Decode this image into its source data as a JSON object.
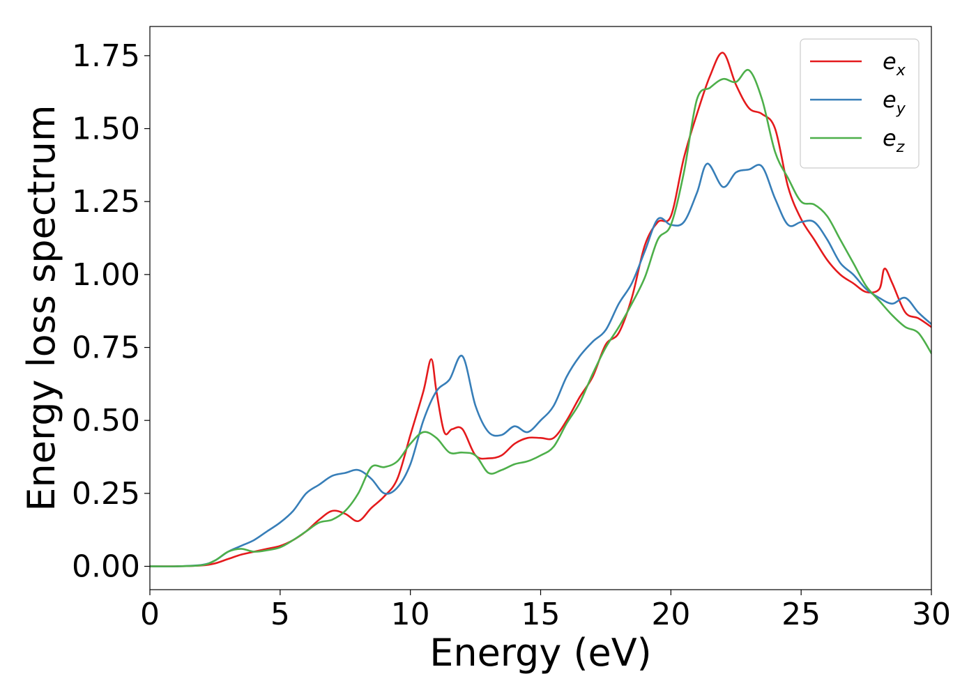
{
  "chart_data": {
    "type": "line",
    "title": "",
    "xlabel": "Energy (eV)",
    "ylabel": "Energy loss spectrum",
    "xlim": [
      0,
      30
    ],
    "ylim": [
      -0.08,
      1.85
    ],
    "xticks": [
      0,
      5,
      10,
      15,
      20,
      25,
      30
    ],
    "xtick_labels": [
      "0",
      "5",
      "10",
      "15",
      "20",
      "25",
      "30"
    ],
    "yticks": [
      0,
      0.25,
      0.5,
      0.75,
      1.0,
      1.25,
      1.5,
      1.75
    ],
    "ytick_labels": [
      "0.00",
      "0.25",
      "0.50",
      "0.75",
      "1.00",
      "1.25",
      "1.50",
      "1.75"
    ],
    "grid": false,
    "legend_position": "top-right",
    "series": [
      {
        "name": "e_x",
        "label_base": "e",
        "label_sub": "x",
        "color": "#e41a1c",
        "x": [
          0,
          1,
          2,
          2.5,
          3,
          3.5,
          4,
          4.5,
          5,
          5.5,
          6,
          6.5,
          7,
          7.5,
          8,
          8.5,
          9,
          9.5,
          10,
          10.5,
          10.8,
          11,
          11.3,
          11.6,
          12,
          12.5,
          13,
          13.5,
          14,
          14.5,
          15,
          15.5,
          16,
          16.5,
          17,
          17.5,
          18,
          18.5,
          19,
          19.5,
          20,
          20.5,
          21,
          21.5,
          22,
          22.5,
          23,
          23.5,
          24,
          24.5,
          25,
          25.5,
          26,
          26.5,
          27,
          27.5,
          28,
          28.2,
          28.5,
          29,
          29.5,
          30
        ],
        "y": [
          0,
          0,
          0.003,
          0.01,
          0.025,
          0.04,
          0.05,
          0.06,
          0.07,
          0.09,
          0.12,
          0.16,
          0.19,
          0.18,
          0.155,
          0.2,
          0.24,
          0.3,
          0.45,
          0.6,
          0.71,
          0.6,
          0.46,
          0.47,
          0.47,
          0.38,
          0.37,
          0.38,
          0.42,
          0.44,
          0.44,
          0.44,
          0.5,
          0.58,
          0.65,
          0.76,
          0.8,
          0.92,
          1.1,
          1.18,
          1.2,
          1.4,
          1.55,
          1.68,
          1.76,
          1.65,
          1.57,
          1.55,
          1.5,
          1.3,
          1.19,
          1.12,
          1.05,
          1.0,
          0.97,
          0.94,
          0.95,
          1.02,
          0.97,
          0.87,
          0.85,
          0.82
        ]
      },
      {
        "name": "e_y",
        "label_base": "e",
        "label_sub": "y",
        "color": "#377eb8",
        "x": [
          0,
          1,
          2,
          2.5,
          3,
          3.5,
          4,
          4.5,
          5,
          5.5,
          6,
          6.5,
          7,
          7.5,
          8,
          8.5,
          9,
          9.5,
          10,
          10.5,
          11,
          11.5,
          12,
          12.5,
          13,
          13.5,
          14,
          14.5,
          15,
          15.5,
          16,
          16.5,
          17,
          17.5,
          18,
          18.5,
          19,
          19.5,
          20,
          20.5,
          21,
          21.4,
          22,
          22.5,
          23,
          23.5,
          24,
          24.5,
          25,
          25.5,
          26,
          26.5,
          27,
          27.5,
          28,
          28.5,
          29,
          29.5,
          30
        ],
        "y": [
          0,
          0,
          0.005,
          0.02,
          0.05,
          0.07,
          0.09,
          0.12,
          0.15,
          0.19,
          0.25,
          0.28,
          0.31,
          0.32,
          0.33,
          0.3,
          0.25,
          0.27,
          0.35,
          0.5,
          0.6,
          0.64,
          0.72,
          0.55,
          0.46,
          0.45,
          0.48,
          0.46,
          0.5,
          0.55,
          0.65,
          0.72,
          0.77,
          0.81,
          0.9,
          0.97,
          1.08,
          1.19,
          1.17,
          1.18,
          1.28,
          1.38,
          1.3,
          1.35,
          1.36,
          1.37,
          1.26,
          1.17,
          1.18,
          1.18,
          1.12,
          1.04,
          1.0,
          0.95,
          0.92,
          0.9,
          0.92,
          0.87,
          0.83
        ]
      },
      {
        "name": "e_z",
        "label_base": "e",
        "label_sub": "z",
        "color": "#4daf4a",
        "x": [
          0,
          1,
          2,
          2.5,
          3,
          3.5,
          4,
          4.5,
          5,
          5.5,
          6,
          6.5,
          7,
          7.5,
          8,
          8.5,
          9,
          9.5,
          10,
          10.5,
          11,
          11.5,
          12,
          12.5,
          13,
          13.5,
          14,
          14.5,
          15,
          15.5,
          16,
          16.5,
          17,
          17.5,
          18,
          18.5,
          19,
          19.5,
          20,
          20.5,
          21,
          21.5,
          22,
          22.5,
          23,
          23.5,
          24,
          24.5,
          25,
          25.5,
          26,
          26.5,
          27,
          27.5,
          28,
          28.5,
          29,
          29.5,
          30
        ],
        "y": [
          0,
          0,
          0.004,
          0.02,
          0.05,
          0.06,
          0.05,
          0.055,
          0.065,
          0.09,
          0.12,
          0.15,
          0.16,
          0.19,
          0.25,
          0.34,
          0.34,
          0.36,
          0.42,
          0.46,
          0.44,
          0.39,
          0.39,
          0.38,
          0.32,
          0.33,
          0.35,
          0.36,
          0.38,
          0.41,
          0.49,
          0.56,
          0.66,
          0.75,
          0.82,
          0.9,
          0.99,
          1.12,
          1.17,
          1.35,
          1.6,
          1.64,
          1.67,
          1.66,
          1.7,
          1.6,
          1.42,
          1.33,
          1.25,
          1.24,
          1.2,
          1.12,
          1.04,
          0.96,
          0.91,
          0.86,
          0.82,
          0.8,
          0.73
        ]
      }
    ]
  }
}
